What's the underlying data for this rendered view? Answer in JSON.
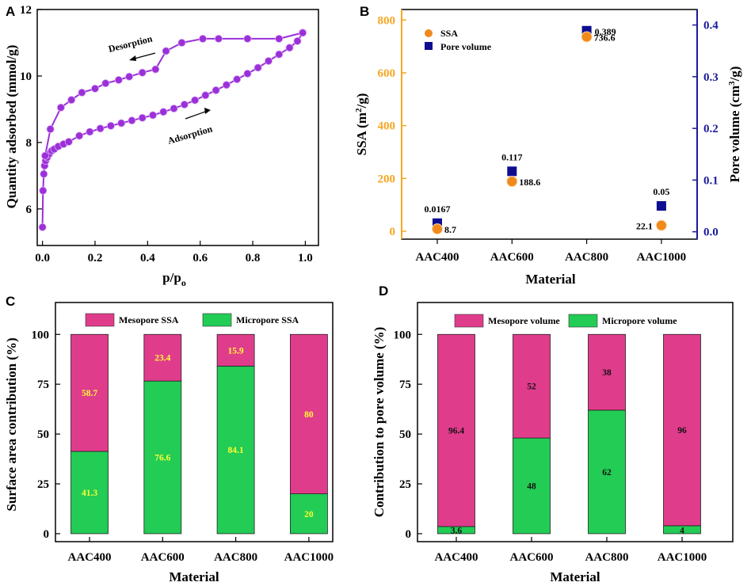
{
  "chart_data": [
    {
      "panel": "A",
      "type": "line",
      "xlabel": "p/p",
      "xlabel_sub": "o",
      "ylabel": "Quantity adsorbed (mmol/g)",
      "xlim": [
        -0.02,
        1.05
      ],
      "ylim": [
        4.9,
        12
      ],
      "xticks": [
        0.0,
        0.2,
        0.4,
        0.6,
        0.8,
        1.0
      ],
      "xtick_labels": [
        "0.0",
        "0.2",
        "0.4",
        "0.6",
        "0.8",
        "1.0"
      ],
      "yticks": [
        6,
        8,
        10,
        12
      ],
      "ytick_labels": [
        "6",
        "8",
        "10",
        "12"
      ],
      "color": "#9b30d8",
      "annotations": [
        "Desorption",
        "Adsorption"
      ],
      "series": [
        {
          "name": "Adsorption",
          "x": [
            0.0,
            0.002,
            0.005,
            0.008,
            0.012,
            0.018,
            0.025,
            0.035,
            0.045,
            0.06,
            0.08,
            0.1,
            0.14,
            0.18,
            0.22,
            0.26,
            0.3,
            0.34,
            0.38,
            0.42,
            0.46,
            0.5,
            0.54,
            0.58,
            0.62,
            0.66,
            0.7,
            0.74,
            0.78,
            0.82,
            0.86,
            0.9,
            0.94,
            0.97,
            0.99
          ],
          "y": [
            5.45,
            6.55,
            7.05,
            7.3,
            7.45,
            7.55,
            7.65,
            7.75,
            7.8,
            7.88,
            7.95,
            8.02,
            8.2,
            8.32,
            8.42,
            8.5,
            8.58,
            8.66,
            8.74,
            8.82,
            8.92,
            9.02,
            9.14,
            9.27,
            9.42,
            9.57,
            9.73,
            9.9,
            10.07,
            10.25,
            10.45,
            10.65,
            10.85,
            11.05,
            11.3
          ]
        },
        {
          "name": "Desorption",
          "x": [
            0.99,
            0.9,
            0.78,
            0.67,
            0.61,
            0.53,
            0.47,
            0.43,
            0.38,
            0.33,
            0.29,
            0.24,
            0.2,
            0.15,
            0.11,
            0.07,
            0.03,
            0.01
          ],
          "y": [
            11.3,
            11.12,
            11.12,
            11.12,
            11.12,
            11.0,
            10.75,
            10.2,
            10.1,
            9.98,
            9.88,
            9.78,
            9.62,
            9.5,
            9.28,
            9.05,
            8.4,
            7.6
          ]
        }
      ]
    },
    {
      "panel": "B",
      "type": "scatter",
      "xlabel": "Material",
      "ylabel_left": "SSA (m",
      "ylabel_left_sup": "2",
      "ylabel_left_end": "/g)",
      "ylabel_right": "Pore volume (cm",
      "ylabel_right_sup": "3",
      "ylabel_right_end": "/g)",
      "categories": [
        "AAC400",
        "AAC600",
        "AAC800",
        "AAC1000"
      ],
      "ylim_left": [
        -30,
        840
      ],
      "ylim_right": [
        -0.0143,
        0.43
      ],
      "yticks_left": [
        0,
        200,
        400,
        600,
        800
      ],
      "ytick_labels_left": [
        "0",
        "200",
        "400",
        "600",
        "800"
      ],
      "yticks_right": [
        0.0,
        0.1,
        0.2,
        0.3,
        0.4
      ],
      "ytick_labels_right": [
        "0.0",
        "0.1",
        "0.2",
        "0.3",
        "0.4"
      ],
      "left_color": "#f5a623",
      "right_color": "#1a1a9c",
      "series": [
        {
          "name": "SSA",
          "axis": "left",
          "marker": "circle",
          "color": "#f08a1c",
          "values": [
            8.7,
            188.6,
            736.6,
            22.1
          ],
          "labels": [
            "8.7",
            "188.6",
            "736.6",
            "22.1"
          ]
        },
        {
          "name": "Pore volume",
          "axis": "right",
          "marker": "square",
          "color": "#0d0d8f",
          "values": [
            0.0167,
            0.117,
            0.389,
            0.05
          ],
          "labels": [
            "0.0167",
            "0.117",
            "0.389",
            "0.05"
          ]
        }
      ]
    },
    {
      "panel": "C",
      "type": "bar",
      "stacked": true,
      "xlabel": "Material",
      "ylabel": "Surface area contribution (%)",
      "categories": [
        "AAC400",
        "AAC600",
        "AAC800",
        "AAC1000"
      ],
      "ylim": [
        -4,
        116
      ],
      "yticks": [
        0,
        25,
        50,
        75,
        100
      ],
      "ytick_labels": [
        "0",
        "25",
        "50",
        "75",
        "100"
      ],
      "label_color": "#ffff33",
      "series": [
        {
          "name": "Micropore SSA",
          "color": "#22cc55",
          "values": [
            41.3,
            76.6,
            84.1,
            20
          ],
          "labels": [
            "41.3",
            "76.6",
            "84.1",
            "20"
          ]
        },
        {
          "name": "Mesopore SSA",
          "color": "#e03c8c",
          "values": [
            58.7,
            23.4,
            15.9,
            80
          ],
          "labels": [
            "58.7",
            "23.4",
            "15.9",
            "80"
          ]
        }
      ]
    },
    {
      "panel": "D",
      "type": "bar",
      "stacked": true,
      "xlabel": "Material",
      "ylabel": "Contribution to pore volume (%)",
      "categories": [
        "AAC400",
        "AAC600",
        "AAC800",
        "AAC1000"
      ],
      "ylim": [
        -4,
        116
      ],
      "yticks": [
        0,
        25,
        50,
        75,
        100
      ],
      "ytick_labels": [
        "0",
        "25",
        "50",
        "75",
        "100"
      ],
      "label_color": "#111111",
      "series": [
        {
          "name": "Micropore volume",
          "color": "#22cc55",
          "values": [
            3.6,
            48,
            62,
            4
          ],
          "labels": [
            "3.6",
            "48",
            "62",
            "4"
          ]
        },
        {
          "name": "Mesopore volume",
          "color": "#e03c8c",
          "values": [
            96.4,
            52,
            38,
            96
          ],
          "labels": [
            "96.4",
            "52",
            "38",
            "96"
          ]
        }
      ]
    }
  ]
}
